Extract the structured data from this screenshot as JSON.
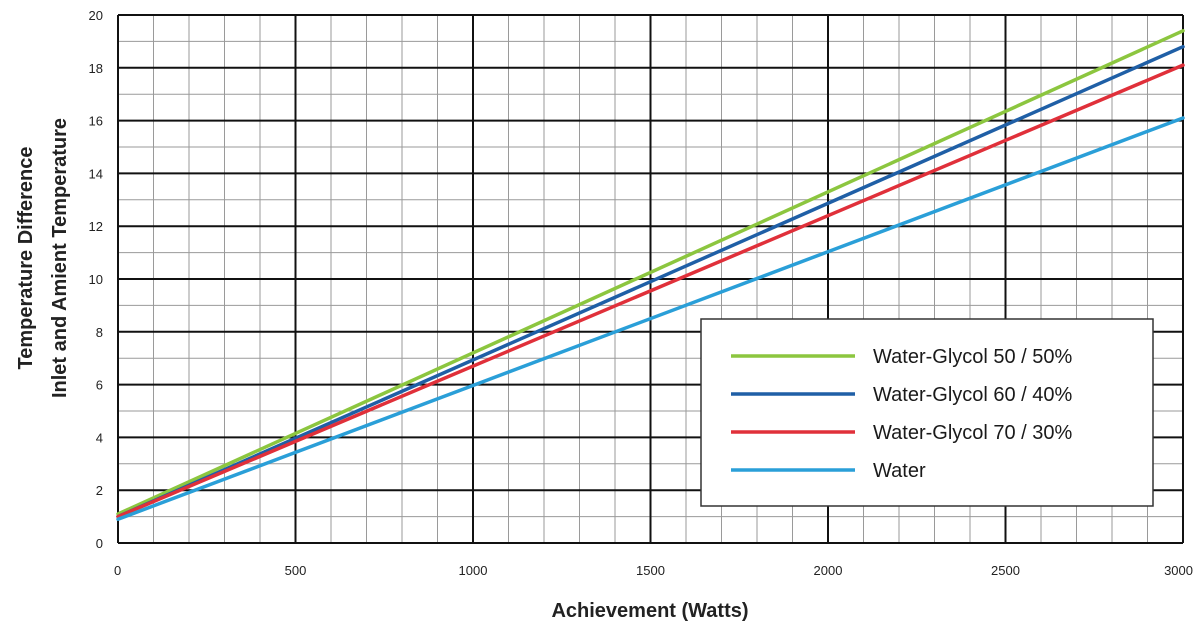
{
  "chart_data": {
    "type": "line",
    "xlabel": "Achievement (Watts)",
    "ylabel_line1": "Temperature Difference",
    "ylabel_line2": "Inlet and Amient Temperature",
    "xlim": [
      0,
      3000
    ],
    "ylim": [
      0,
      20
    ],
    "x_ticks": [
      "0",
      "500",
      "1000",
      "1500",
      "2000",
      "2500",
      "3000"
    ],
    "y_ticks": [
      "0",
      "2",
      "4",
      "6",
      "8",
      "10",
      "12",
      "14",
      "16",
      "18",
      "20"
    ],
    "grid": true,
    "legend_position": "bottom-right",
    "x": [
      0,
      3000
    ],
    "series": [
      {
        "name": "Water-Glycol 50 / 50%",
        "color": "#8cc63f",
        "values": [
          1.1,
          19.4
        ]
      },
      {
        "name": "Water-Glycol 60 / 40%",
        "color": "#1f5fa6",
        "values": [
          1.0,
          18.8
        ]
      },
      {
        "name": "Water-Glycol 70 / 30%",
        "color": "#e0303a",
        "values": [
          1.0,
          18.1
        ]
      },
      {
        "name": "Water",
        "color": "#2a9fd8",
        "values": [
          0.9,
          16.1
        ]
      }
    ]
  }
}
